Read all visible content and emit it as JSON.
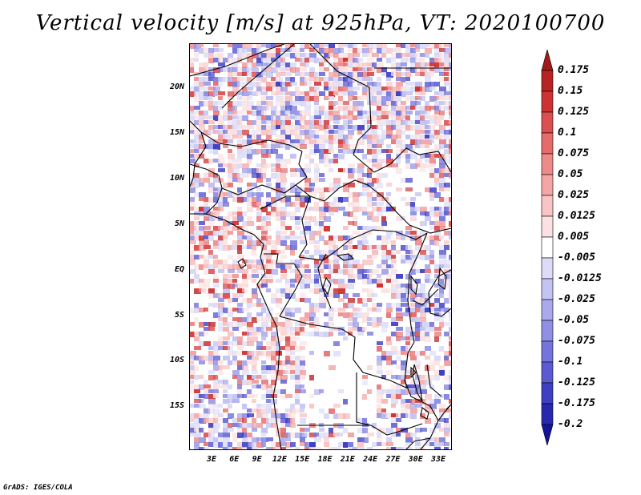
{
  "title": "Vertical velocity [m/s] at 925hPa, VT: 2020100700",
  "footer": "GrADS: IGES/COLA",
  "map": {
    "lat_labels": [
      "20N",
      "15N",
      "10N",
      "5N",
      "EQ",
      "5S",
      "10S",
      "15S"
    ],
    "lon_labels": [
      "3E",
      "6E",
      "9E",
      "12E",
      "15E",
      "18E",
      "21E",
      "24E",
      "27E",
      "30E",
      "33E"
    ]
  },
  "colorbar": {
    "labels": [
      "0.175",
      "0.15",
      "0.125",
      "0.1",
      "0.075",
      "0.05",
      "0.025",
      "0.0125",
      "0.005",
      "-0.005",
      "-0.0125",
      "-0.025",
      "-0.05",
      "-0.075",
      "-0.1",
      "-0.125",
      "-0.175",
      "-0.2"
    ],
    "colors": [
      "#a31a1a",
      "#b82424",
      "#cc3333",
      "#dd4e4e",
      "#e66b6b",
      "#ee8a8a",
      "#f4a6a6",
      "#f8c4c4",
      "#fbe1e1",
      "#ffffff",
      "#dcdcf8",
      "#c4c4f2",
      "#a9a9ec",
      "#8f8fe6",
      "#7474dc",
      "#5a5ad2",
      "#3f3fc4",
      "#2727b0",
      "#14149a"
    ]
  },
  "colors": {
    "positive": "#e05050",
    "negative": "#5a5ad2",
    "border": "#000000"
  }
}
